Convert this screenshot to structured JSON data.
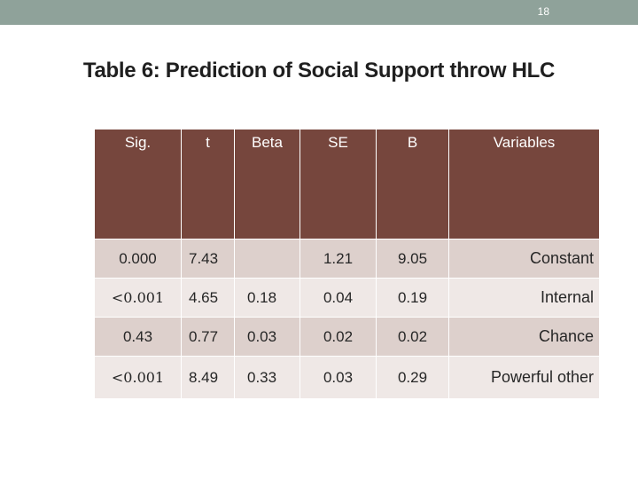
{
  "page_number": "18",
  "title": "Table 6: Prediction of Social Support throw HLC",
  "table": {
    "headers": [
      "Sig.",
      "t",
      "Beta",
      "SE",
      "B",
      "Variables"
    ],
    "rows": [
      [
        "0.000",
        "7.43",
        "",
        "1.21",
        "9.05",
        "Constant"
      ],
      [
        "<0.001",
        "4.65",
        "0.18",
        "0.04",
        "0.19",
        "Internal"
      ],
      [
        "0.43",
        "0.77",
        "0.03",
        "0.02",
        "0.02",
        "Chance"
      ],
      [
        "<0.001",
        "8.49",
        "0.33",
        "0.03",
        "0.29",
        "Powerful other"
      ]
    ]
  },
  "colors": {
    "header_bar": "#8fa29a",
    "table_header": "#76463d",
    "row_dark": "#ddd0cc",
    "row_light": "#efe8e6"
  }
}
